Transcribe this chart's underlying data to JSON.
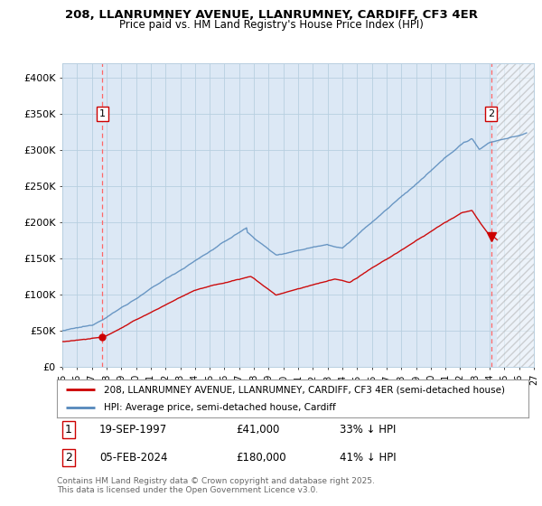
{
  "title1": "208, LLANRUMNEY AVENUE, LLANRUMNEY, CARDIFF, CF3 4ER",
  "title2": "Price paid vs. HM Land Registry's House Price Index (HPI)",
  "ylim": [
    0,
    420000
  ],
  "xlim": [
    1995.0,
    2027.0
  ],
  "yticks": [
    0,
    50000,
    100000,
    150000,
    200000,
    250000,
    300000,
    350000,
    400000
  ],
  "ytick_labels": [
    "£0",
    "£50K",
    "£100K",
    "£150K",
    "£200K",
    "£250K",
    "£300K",
    "£350K",
    "£400K"
  ],
  "xticks": [
    1995,
    1996,
    1997,
    1998,
    1999,
    2000,
    2001,
    2002,
    2003,
    2004,
    2005,
    2006,
    2007,
    2008,
    2009,
    2010,
    2011,
    2012,
    2013,
    2014,
    2015,
    2016,
    2017,
    2018,
    2019,
    2020,
    2021,
    2022,
    2023,
    2024,
    2025,
    2026,
    2027
  ],
  "point1_x": 1997.72,
  "point1_y": 41000,
  "point1_label": "1",
  "point2_x": 2024.09,
  "point2_y": 180000,
  "point2_label": "2",
  "legend_line1": "208, LLANRUMNEY AVENUE, LLANRUMNEY, CARDIFF, CF3 4ER (semi-detached house)",
  "legend_line2": "HPI: Average price, semi-detached house, Cardiff",
  "footer": "Contains HM Land Registry data © Crown copyright and database right 2025.\nThis data is licensed under the Open Government Licence v3.0.",
  "red_line_color": "#cc0000",
  "blue_line_color": "#5588bb",
  "chart_bg": "#dce8f5",
  "background_color": "#ffffff",
  "grid_color": "#b8cfe0",
  "dashed_line_color": "#ff6666",
  "hatch_start": 2024.5
}
